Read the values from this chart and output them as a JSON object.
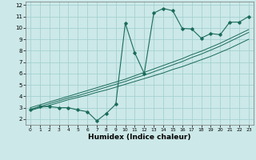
{
  "x": [
    0,
    1,
    2,
    3,
    4,
    5,
    6,
    7,
    8,
    9,
    10,
    11,
    12,
    13,
    14,
    15,
    16,
    17,
    18,
    19,
    20,
    21,
    22,
    23
  ],
  "humidex": [
    2.8,
    3.1,
    3.1,
    3.0,
    3.0,
    2.8,
    2.65,
    1.85,
    2.5,
    3.3,
    10.4,
    7.8,
    6.0,
    11.3,
    11.7,
    11.5,
    9.95,
    9.9,
    9.1,
    9.5,
    9.4,
    10.5,
    10.5,
    11.0
  ],
  "line1": [
    2.75,
    3.0,
    3.2,
    3.45,
    3.7,
    3.9,
    4.1,
    4.35,
    4.55,
    4.8,
    5.05,
    5.3,
    5.55,
    5.8,
    6.05,
    6.35,
    6.6,
    6.9,
    7.2,
    7.5,
    7.85,
    8.2,
    8.6,
    9.0
  ],
  "line2": [
    2.85,
    3.1,
    3.35,
    3.6,
    3.85,
    4.05,
    4.3,
    4.55,
    4.8,
    5.05,
    5.3,
    5.6,
    5.85,
    6.15,
    6.45,
    6.75,
    7.05,
    7.4,
    7.7,
    8.05,
    8.4,
    8.8,
    9.2,
    9.6
  ],
  "line3": [
    3.0,
    3.25,
    3.5,
    3.75,
    4.0,
    4.25,
    4.5,
    4.75,
    5.0,
    5.25,
    5.5,
    5.8,
    6.1,
    6.4,
    6.7,
    7.0,
    7.3,
    7.65,
    7.95,
    8.3,
    8.65,
    9.05,
    9.45,
    9.85
  ],
  "bg_color": "#cce8e8",
  "line_color": "#1a6b5a",
  "grid_color": "#9dcece",
  "xlabel": "Humidex (Indice chaleur)",
  "ylim": [
    1.5,
    12.3
  ],
  "xlim": [
    -0.5,
    23.5
  ],
  "yticks": [
    2,
    3,
    4,
    5,
    6,
    7,
    8,
    9,
    10,
    11,
    12
  ],
  "xticks": [
    0,
    1,
    2,
    3,
    4,
    5,
    6,
    7,
    8,
    9,
    10,
    11,
    12,
    13,
    14,
    15,
    16,
    17,
    18,
    19,
    20,
    21,
    22,
    23
  ],
  "tick_fontsize": 5.0,
  "xlabel_fontsize": 6.5
}
